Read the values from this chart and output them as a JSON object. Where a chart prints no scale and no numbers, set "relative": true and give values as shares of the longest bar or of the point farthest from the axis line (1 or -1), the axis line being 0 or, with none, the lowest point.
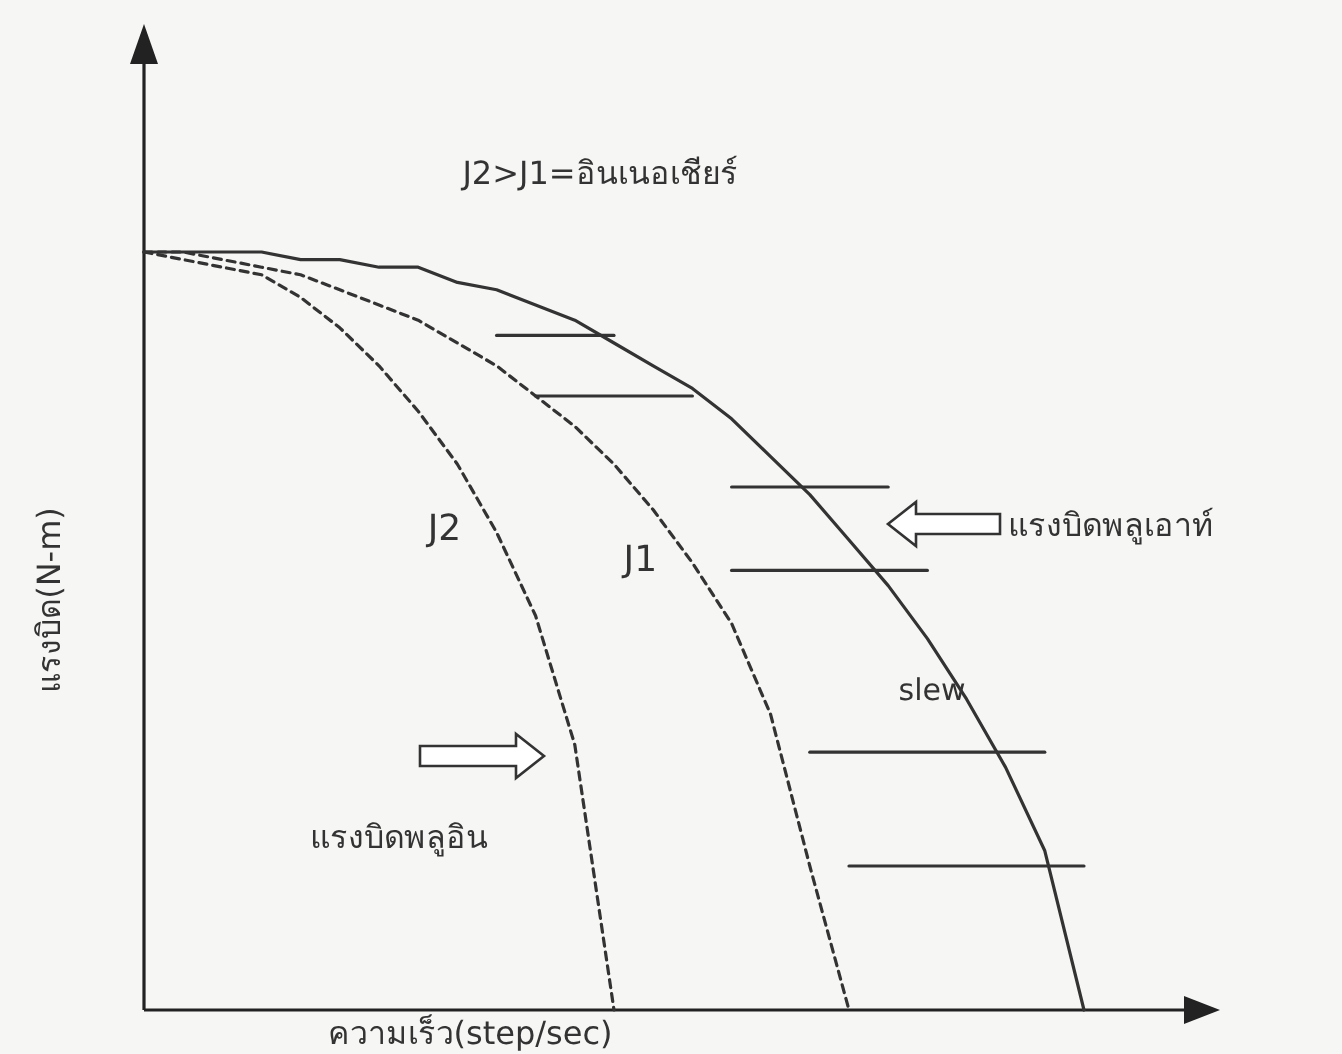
{
  "chart_data": {
    "type": "line",
    "relative": true,
    "xlabel": "ความเร็ว(step/sec)",
    "ylabel": "แรงบิด(N-m)",
    "categories": [
      null,
      null,
      null,
      null,
      null,
      null,
      null,
      null,
      null,
      null,
      null,
      null,
      null,
      null,
      null,
      null,
      null,
      null,
      null,
      null,
      null,
      null,
      null,
      null,
      null
    ],
    "series": [
      {
        "color": "#333333",
        "line_style": "solid",
        "values": [
          1,
          1,
          1,
          1,
          0.99,
          0.99,
          0.98,
          0.98,
          0.96,
          0.95,
          0.93,
          0.91,
          0.88,
          0.85,
          0.82,
          0.78,
          0.73,
          0.68,
          0.62,
          0.56,
          0.49,
          0.41,
          0.32,
          0.21,
          0
        ]
      },
      {
        "name": "J1",
        "color": "#333333",
        "line_style": "dashed",
        "values": [
          1,
          1,
          0.99,
          0.98,
          0.97,
          0.95,
          0.93,
          0.91,
          0.88,
          0.85,
          0.81,
          0.77,
          0.72,
          0.66,
          0.59,
          0.51,
          0.39,
          0.19,
          0,
          null,
          null,
          null,
          null,
          null,
          null
        ]
      },
      {
        "name": "J2",
        "color": "#333333",
        "line_style": "dashed",
        "values": [
          1,
          0.99,
          0.98,
          0.97,
          0.94,
          0.9,
          0.85,
          0.79,
          0.72,
          0.63,
          0.52,
          0.35,
          0,
          null,
          null,
          null,
          null,
          null,
          null,
          null,
          null,
          null,
          null,
          null,
          null
        ]
      },
      {
        "color": "#333333",
        "line_style": "solid",
        "values": [
          null,
          null,
          null,
          null,
          null,
          null,
          null,
          null,
          null,
          0.89,
          0.89,
          0.89,
          0.89,
          null,
          null,
          null,
          null,
          null,
          null,
          null,
          null,
          null,
          null,
          null,
          null
        ]
      },
      {
        "color": "#333333",
        "line_style": "solid",
        "values": [
          null,
          null,
          null,
          null,
          null,
          null,
          null,
          null,
          null,
          null,
          0.81,
          0.81,
          0.81,
          0.81,
          0.81,
          null,
          null,
          null,
          null,
          null,
          null,
          null,
          null,
          null,
          null
        ]
      },
      {
        "color": "#333333",
        "line_style": "solid",
        "values": [
          null,
          null,
          null,
          null,
          null,
          null,
          null,
          null,
          null,
          null,
          null,
          null,
          null,
          null,
          null,
          0.69,
          0.69,
          0.69,
          0.69,
          0.69,
          null,
          null,
          null,
          null,
          null
        ]
      },
      {
        "color": "#333333",
        "line_style": "solid",
        "values": [
          null,
          null,
          null,
          null,
          null,
          null,
          null,
          null,
          null,
          null,
          null,
          null,
          null,
          null,
          null,
          0.58,
          0.58,
          0.58,
          0.58,
          0.58,
          0.58,
          null,
          null,
          null,
          null
        ]
      },
      {
        "color": "#333333",
        "line_style": "solid",
        "values": [
          null,
          null,
          null,
          null,
          null,
          null,
          null,
          null,
          null,
          null,
          null,
          null,
          null,
          null,
          null,
          null,
          null,
          0.34,
          0.34,
          0.34,
          0.34,
          0.34,
          0.34,
          0.34,
          null
        ]
      },
      {
        "color": "#333333",
        "line_style": "solid",
        "values": [
          null,
          null,
          null,
          null,
          null,
          null,
          null,
          null,
          null,
          null,
          null,
          null,
          null,
          null,
          null,
          null,
          null,
          null,
          0.19,
          0.19,
          0.19,
          0.19,
          0.19,
          0.19,
          0.19
        ]
      }
    ],
    "annotations": [
      "J2>J1=อินเนอเชียร์",
      "slew",
      "แรงบิดพลูเอาท์",
      "แรงบิดพลูอิน"
    ]
  }
}
